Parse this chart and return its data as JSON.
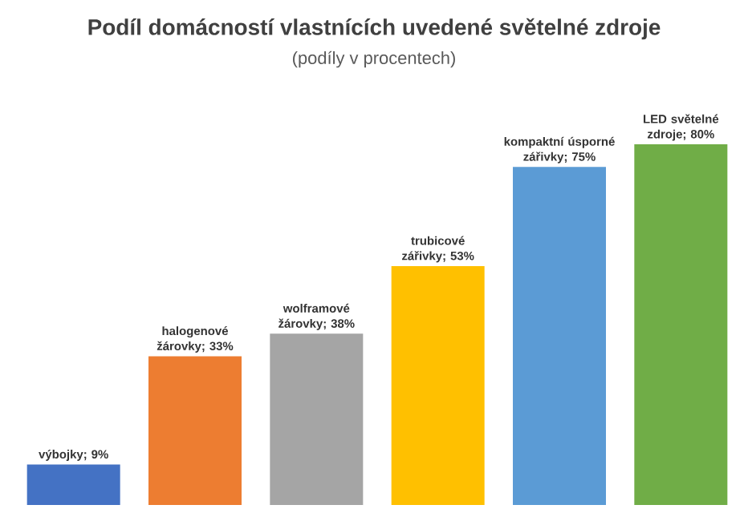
{
  "chart_data": {
    "type": "bar",
    "title": "Podíl domácností vlastnících uvedené světelné zdroje",
    "subtitle": "(podíly v procentech)",
    "categories": [
      null,
      null,
      null,
      null,
      null,
      null
    ],
    "values": [
      9,
      33,
      38,
      53,
      75,
      80
    ],
    "value_labels": [
      "výbojky; 9%",
      "halogenové žárovky; 33%",
      "wolframové žárovky; 38%",
      "trubicové zářivky; 53%",
      "kompaktní úsporné zářivky; 75%",
      "LED světelné zdroje; 80%"
    ],
    "colors": [
      "#4472c4",
      "#ed7d31",
      "#a5a5a5",
      "#ffc000",
      "#5b9bd5",
      "#70ad47"
    ]
  }
}
